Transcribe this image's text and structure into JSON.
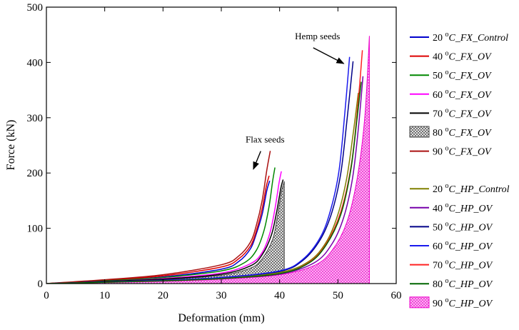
{
  "chart_data": {
    "type": "line",
    "title": "",
    "xlabel": "Deformation (mm)",
    "ylabel": "Force (kN)",
    "xlim": [
      0,
      60
    ],
    "ylim": [
      0,
      500
    ],
    "xticks": [
      0,
      10,
      20,
      30,
      40,
      50,
      60
    ],
    "yticks": [
      0,
      100,
      200,
      300,
      400,
      500
    ],
    "grid": false,
    "legend_position": "right",
    "annotations": [
      {
        "text": "Flax seeds",
        "x": 37.5,
        "y": 255,
        "arrow_to": [
          35.5,
          207
        ]
      },
      {
        "text": "Hemp seeds",
        "x": 46.5,
        "y": 442,
        "arrow_to": [
          51.0,
          398
        ]
      }
    ],
    "series": [
      {
        "name": "20 °C_FX_Control",
        "prefix": "20 ",
        "sup": "o",
        "suffix": "C_FX_Control",
        "group": "flax",
        "color": "#0000cc",
        "style": "line",
        "points": [
          [
            0,
            0
          ],
          [
            10,
            5
          ],
          [
            20,
            12
          ],
          [
            30,
            26
          ],
          [
            33,
            40
          ],
          [
            35,
            63
          ],
          [
            36,
            90
          ],
          [
            37,
            125
          ],
          [
            37.8,
            168
          ],
          [
            38.3,
            186
          ]
        ]
      },
      {
        "name": "40 °C_FX_OV",
        "prefix": "40 ",
        "sup": "o",
        "suffix": "C_FX_OV",
        "group": "flax",
        "color": "#dd0000",
        "style": "line",
        "points": [
          [
            0,
            0
          ],
          [
            10,
            6
          ],
          [
            20,
            14
          ],
          [
            30,
            30
          ],
          [
            33,
            45
          ],
          [
            35,
            68
          ],
          [
            36,
            95
          ],
          [
            37,
            135
          ],
          [
            37.7,
            175
          ],
          [
            38.2,
            195
          ]
        ]
      },
      {
        "name": "50 °C_FX_OV",
        "prefix": "50 ",
        "sup": "o",
        "suffix": "C_FX_OV",
        "group": "flax",
        "color": "#008800",
        "style": "line",
        "points": [
          [
            0,
            0
          ],
          [
            10,
            5
          ],
          [
            20,
            11
          ],
          [
            30,
            23
          ],
          [
            34,
            38
          ],
          [
            36,
            60
          ],
          [
            37.3,
            95
          ],
          [
            38.2,
            140
          ],
          [
            38.8,
            185
          ],
          [
            39.2,
            210
          ]
        ]
      },
      {
        "name": "60 °C_FX_OV",
        "prefix": "60 ",
        "sup": "o",
        "suffix": "C_FX_OV",
        "group": "flax",
        "color": "#ff00ff",
        "style": "line",
        "points": [
          [
            0,
            0
          ],
          [
            10,
            4
          ],
          [
            20,
            9
          ],
          [
            30,
            19
          ],
          [
            35,
            36
          ],
          [
            37,
            56
          ],
          [
            38.3,
            90
          ],
          [
            39.2,
            135
          ],
          [
            39.9,
            182
          ],
          [
            40.3,
            203
          ]
        ]
      },
      {
        "name": "70 °C_FX_OV",
        "prefix": "70 ",
        "sup": "o",
        "suffix": "C_FX_OV",
        "group": "flax",
        "color": "#000000",
        "style": "line",
        "points": [
          [
            0,
            0
          ],
          [
            10,
            4
          ],
          [
            20,
            8
          ],
          [
            30,
            17
          ],
          [
            35,
            32
          ],
          [
            37,
            52
          ],
          [
            38.6,
            88
          ],
          [
            39.5,
            130
          ],
          [
            40.2,
            172
          ],
          [
            40.6,
            188
          ]
        ]
      },
      {
        "name": "80 °C_FX_OV",
        "prefix": "80 ",
        "sup": "o",
        "suffix": "C_FX_OV",
        "group": "flax",
        "color": "#444444",
        "style": "fill-cross",
        "points": [
          [
            0,
            0
          ],
          [
            10,
            3
          ],
          [
            20,
            7
          ],
          [
            30,
            15
          ],
          [
            35,
            28
          ],
          [
            37,
            45
          ],
          [
            38.8,
            80
          ],
          [
            39.6,
            120
          ],
          [
            40.3,
            165
          ],
          [
            40.8,
            185
          ]
        ]
      },
      {
        "name": "90 °C_FX_OV",
        "prefix": "90 ",
        "sup": "o",
        "suffix": "C_FX_OV",
        "group": "flax",
        "color": "#aa1111",
        "style": "line",
        "points": [
          [
            0,
            0
          ],
          [
            10,
            7
          ],
          [
            20,
            16
          ],
          [
            30,
            34
          ],
          [
            33,
            50
          ],
          [
            35,
            75
          ],
          [
            36,
            105
          ],
          [
            37,
            150
          ],
          [
            37.8,
            205
          ],
          [
            38.4,
            240
          ]
        ]
      },
      {
        "name": "20 °C_HP_Control",
        "prefix": "20 ",
        "sup": "o",
        "suffix": "C_HP_Control",
        "group": "hemp",
        "color": "#808000",
        "style": "line",
        "points": [
          [
            0,
            0
          ],
          [
            20,
            6
          ],
          [
            30,
            10
          ],
          [
            40,
            20
          ],
          [
            45,
            40
          ],
          [
            48,
            75
          ],
          [
            50,
            125
          ],
          [
            51.5,
            190
          ],
          [
            52.6,
            270
          ],
          [
            53.5,
            345
          ]
        ]
      },
      {
        "name": "40 °C_HP_OV",
        "prefix": "40 ",
        "sup": "o",
        "suffix": "C_HP_OV",
        "group": "hemp",
        "color": "#7700aa",
        "style": "line",
        "points": [
          [
            0,
            0
          ],
          [
            20,
            5
          ],
          [
            30,
            9
          ],
          [
            40,
            17
          ],
          [
            46,
            38
          ],
          [
            49,
            72
          ],
          [
            51,
            120
          ],
          [
            52.5,
            190
          ],
          [
            53.5,
            280
          ],
          [
            54.3,
            375
          ]
        ]
      },
      {
        "name": "50 °C_HP_OV",
        "prefix": "50 ",
        "sup": "o",
        "suffix": "C_HP_OV",
        "group": "hemp",
        "color": "#000088",
        "style": "line",
        "points": [
          [
            0,
            0
          ],
          [
            20,
            6
          ],
          [
            30,
            11
          ],
          [
            40,
            22
          ],
          [
            44,
            42
          ],
          [
            47,
            80
          ],
          [
            49,
            130
          ],
          [
            50.5,
            200
          ],
          [
            51.6,
            300
          ],
          [
            52.6,
            402
          ]
        ]
      },
      {
        "name": "60 °C_HP_OV",
        "prefix": "60 ",
        "sup": "o",
        "suffix": "C_HP_OV",
        "group": "hemp",
        "color": "#1a1aee",
        "style": "line",
        "points": [
          [
            0,
            0
          ],
          [
            20,
            6
          ],
          [
            30,
            11
          ],
          [
            40,
            23
          ],
          [
            44,
            44
          ],
          [
            47,
            84
          ],
          [
            48.8,
            135
          ],
          [
            50.2,
            205
          ],
          [
            51.2,
            310
          ],
          [
            52,
            410
          ]
        ]
      },
      {
        "name": "70 °C_HP_OV",
        "prefix": "70 ",
        "sup": "o",
        "suffix": "C_HP_OV",
        "group": "hemp",
        "color": "#ff2222",
        "style": "line",
        "points": [
          [
            0,
            0
          ],
          [
            20,
            5
          ],
          [
            30,
            9
          ],
          [
            40,
            18
          ],
          [
            45,
            38
          ],
          [
            48,
            72
          ],
          [
            50.5,
            130
          ],
          [
            52.3,
            215
          ],
          [
            53.4,
            320
          ],
          [
            54.2,
            422
          ]
        ]
      },
      {
        "name": "80 °C_HP_OV",
        "prefix": "80 ",
        "sup": "o",
        "suffix": "C_HP_OV",
        "group": "hemp",
        "color": "#006600",
        "style": "line",
        "points": [
          [
            0,
            0
          ],
          [
            20,
            5
          ],
          [
            30,
            9
          ],
          [
            40,
            18
          ],
          [
            45,
            37
          ],
          [
            48,
            70
          ],
          [
            50.5,
            125
          ],
          [
            52.2,
            205
          ],
          [
            53.3,
            300
          ],
          [
            54,
            365
          ]
        ]
      },
      {
        "name": "90 °C_HP_OV",
        "prefix": "90 ",
        "sup": "o",
        "suffix": "C_HP_OV",
        "group": "hemp",
        "color": "#ee00cc",
        "style": "fill-dot",
        "points": [
          [
            0,
            0
          ],
          [
            20,
            4
          ],
          [
            30,
            8
          ],
          [
            40,
            16
          ],
          [
            46,
            33
          ],
          [
            49,
            60
          ],
          [
            51.5,
            110
          ],
          [
            53.3,
            190
          ],
          [
            54.6,
            300
          ],
          [
            55.4,
            448
          ]
        ]
      }
    ]
  }
}
